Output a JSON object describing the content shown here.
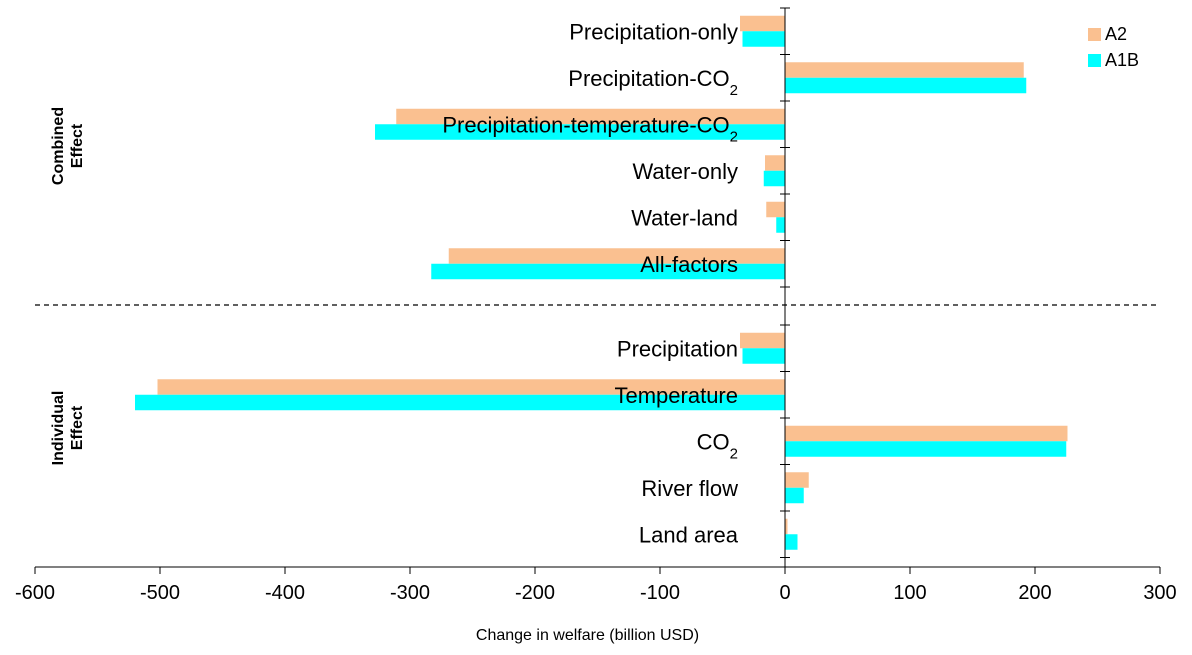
{
  "chart_data": {
    "type": "bar",
    "orientation": "horizontal",
    "xlabel": "Change in welfare (billion USD)",
    "xlim": [
      -600,
      300
    ],
    "xticks": [
      -600,
      -500,
      -400,
      -300,
      -200,
      -100,
      0,
      100,
      200,
      300
    ],
    "grid": false,
    "legend_position": "top-right",
    "categories": [
      {
        "base": "Precipitation-only",
        "sub": ""
      },
      {
        "base": "Precipitation-CO",
        "sub": "2"
      },
      {
        "base": "Precipitation-temperature-CO",
        "sub": "2"
      },
      {
        "base": "Water-only",
        "sub": ""
      },
      {
        "base": "Water-land",
        "sub": ""
      },
      {
        "base": "All-factors",
        "sub": ""
      },
      {
        "base": "Precipitation",
        "sub": ""
      },
      {
        "base": "Temperature",
        "sub": ""
      },
      {
        "base": "CO",
        "sub": "2"
      },
      {
        "base": "River flow",
        "sub": ""
      },
      {
        "base": "Land area",
        "sub": ""
      }
    ],
    "groups": [
      {
        "label_lines": [
          "Combined",
          "Effect"
        ],
        "start": 0,
        "end": 5
      },
      {
        "label_lines": [
          "Individual",
          "Effect"
        ],
        "start": 6,
        "end": 10
      }
    ],
    "series": [
      {
        "name": "A2",
        "color": "#FAC090",
        "values": [
          -36,
          191,
          -311,
          -16,
          -15,
          -269,
          -36,
          -502,
          226,
          19,
          2
        ]
      },
      {
        "name": "A1B",
        "color": "#00FFFF",
        "values": [
          -34,
          193,
          -328,
          -17,
          -7,
          -283,
          -34,
          -520,
          225,
          15,
          10
        ]
      }
    ]
  }
}
